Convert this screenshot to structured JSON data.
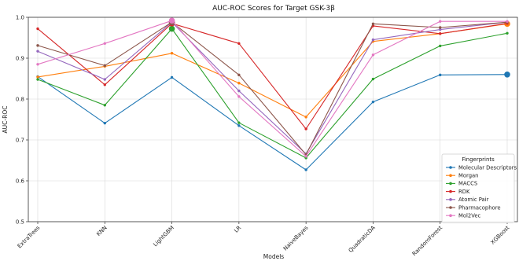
{
  "chart_data": {
    "type": "line",
    "title": "AUC-ROC Scores for Target GSK-3β",
    "xlabel": "Models",
    "ylabel": "AUC-ROC",
    "categories": [
      "ExtraTrees",
      "KNN",
      "LightGBM",
      "LR",
      "NaiveBayes",
      "QuadraticDA",
      "RandomForest",
      "XGBoost"
    ],
    "ylim": [
      0.5,
      1.0
    ],
    "yticks": [
      "0.5",
      "0.6",
      "0.7",
      "0.8",
      "0.9",
      "1.0"
    ],
    "grid": true,
    "legend_title": "Fingerprints",
    "legend_position": "lower-right",
    "series": [
      {
        "name": "Molecular Descriptors",
        "color": "#1f77b4",
        "values": [
          0.855,
          0.741,
          0.853,
          0.735,
          0.627,
          0.793,
          0.859,
          0.86
        ],
        "highlight_index": 7
      },
      {
        "name": "Morgan",
        "color": "#ff7f0e",
        "values": [
          0.854,
          0.88,
          0.912,
          0.839,
          0.756,
          0.941,
          0.96,
          0.984
        ],
        "highlight_index": 7
      },
      {
        "name": "MACCS",
        "color": "#2ca02c",
        "values": [
          0.848,
          0.785,
          0.972,
          0.742,
          0.656,
          0.849,
          0.93,
          0.961
        ],
        "highlight_index": 2
      },
      {
        "name": "RDK",
        "color": "#d62728",
        "values": [
          0.972,
          0.835,
          0.985,
          0.936,
          0.727,
          0.979,
          0.96,
          0.985
        ],
        "highlight_index": 2
      },
      {
        "name": "Atomic Pair",
        "color": "#9467bd",
        "values": [
          0.917,
          0.848,
          0.988,
          0.82,
          0.666,
          0.945,
          0.97,
          0.988
        ],
        "highlight_index": 2
      },
      {
        "name": "Pharmacophore",
        "color": "#8c564b",
        "values": [
          0.931,
          0.882,
          0.988,
          0.859,
          0.664,
          0.984,
          0.975,
          0.988
        ],
        "highlight_index": 2
      },
      {
        "name": "Mol2Vec",
        "color": "#e377c2",
        "values": [
          0.885,
          0.936,
          0.992,
          0.806,
          0.66,
          0.908,
          0.99,
          0.99
        ],
        "highlight_index": 2
      }
    ]
  }
}
